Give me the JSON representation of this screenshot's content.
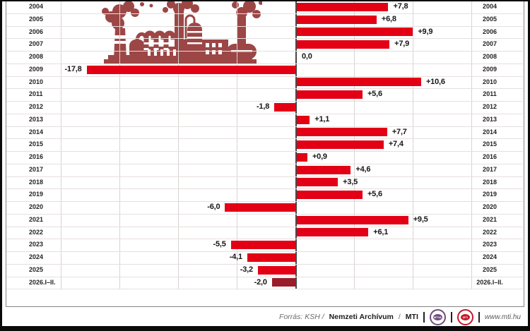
{
  "chart_data": {
    "type": "bar",
    "orientation": "horizontal",
    "title": "",
    "categories": [
      "2004",
      "2005",
      "2006",
      "2007",
      "2008",
      "2009",
      "2010",
      "2011",
      "2012",
      "2013",
      "2014",
      "2015",
      "2016",
      "2017",
      "2018",
      "2019",
      "2020",
      "2021",
      "2022",
      "2023",
      "2024",
      "2025",
      "2026.I–II."
    ],
    "values": [
      7.8,
      6.8,
      9.9,
      7.9,
      0.0,
      -17.8,
      10.6,
      5.6,
      -1.8,
      1.1,
      7.7,
      7.4,
      0.9,
      4.6,
      3.5,
      5.6,
      -6.0,
      9.5,
      6.1,
      -5.5,
      -4.1,
      -3.2,
      -2.0
    ],
    "value_labels": [
      "+7,8",
      "+6,8",
      "+9,9",
      "+7,9",
      "0,0",
      "-17,8",
      "+10,6",
      "+5,6",
      "-1,8",
      "+1,1",
      "+7,7",
      "+7,4",
      "+0,9",
      "+4,6",
      "+3,5",
      "+5,6",
      "-6,0",
      "+9,5",
      "+6,1",
      "-5,5",
      "-4,1",
      "-3,2",
      "-2,0"
    ],
    "highlight_index": 22,
    "gridline_values": [
      -20,
      -15,
      -10,
      -5,
      0,
      5,
      10,
      15
    ],
    "xlim": [
      -22,
      19.5
    ],
    "grid": true,
    "year_labels_shown_on": "both-sides",
    "bar_color": "#e30015",
    "highlight_bar_color": "#9a1b2a"
  },
  "colors": {
    "bar": "#e30015",
    "highlight_bar": "#9a1b2a",
    "factory_illustration": "#9c4646",
    "mtva_logo": "#6f4c80",
    "mti_logo": "#c41a2b"
  },
  "footer": {
    "source_italic": "Forrás: KSH /",
    "source_bold": "Nemzeti Archívum",
    "source_sep": "/",
    "source_bold2": "MTI",
    "logo_mtva": "MTVA",
    "logo_mti": "MTI",
    "website": "www.mti.hu"
  }
}
